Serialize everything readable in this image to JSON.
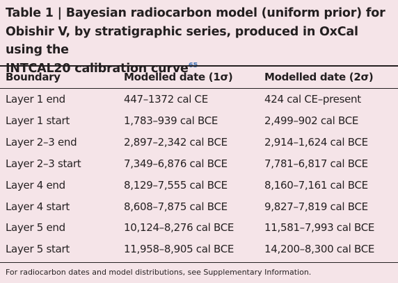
{
  "title": {
    "lines": [
      "Table 1 | Bayesian radiocarbon model (uniform prior) for",
      "Obishir V, by stratigraphic series, produced in OxCal using the",
      "INTCAL20 calibration curve"
    ],
    "superscript": "65"
  },
  "table": {
    "header": [
      "Boundary",
      "Modelled date (1σ)",
      "Modelled date (2σ)"
    ],
    "rows": [
      [
        "Layer 1 end",
        "447–1372 cal CE",
        "424 cal CE–present"
      ],
      [
        "Layer 1 start",
        "1,783–939 cal BCE",
        "2,499–902 cal BCE"
      ],
      [
        "Layer 2–3 end",
        "2,897–2,342 cal BCE",
        "2,914–1,624 cal BCE"
      ],
      [
        "Layer 2–3 start",
        "7,349–6,876 cal BCE",
        "7,781–6,817 cal BCE"
      ],
      [
        "Layer 4 end",
        "8,129–7,555 cal BCE",
        "8,160–7,161 cal BCE"
      ],
      [
        "Layer 4 start",
        "8,608–7,875 cal BCE",
        "9,827–7,819 cal BCE"
      ],
      [
        "Layer 5 end",
        "10,124–8,276 cal BCE",
        "11,581–7,993 cal BCE"
      ],
      [
        "Layer 5 start",
        "11,958–8,905 cal BCE",
        "14,200–8,300 cal BCE"
      ]
    ]
  },
  "footnote": "For radiocarbon dates and model distributions, see Supplementary Information."
}
